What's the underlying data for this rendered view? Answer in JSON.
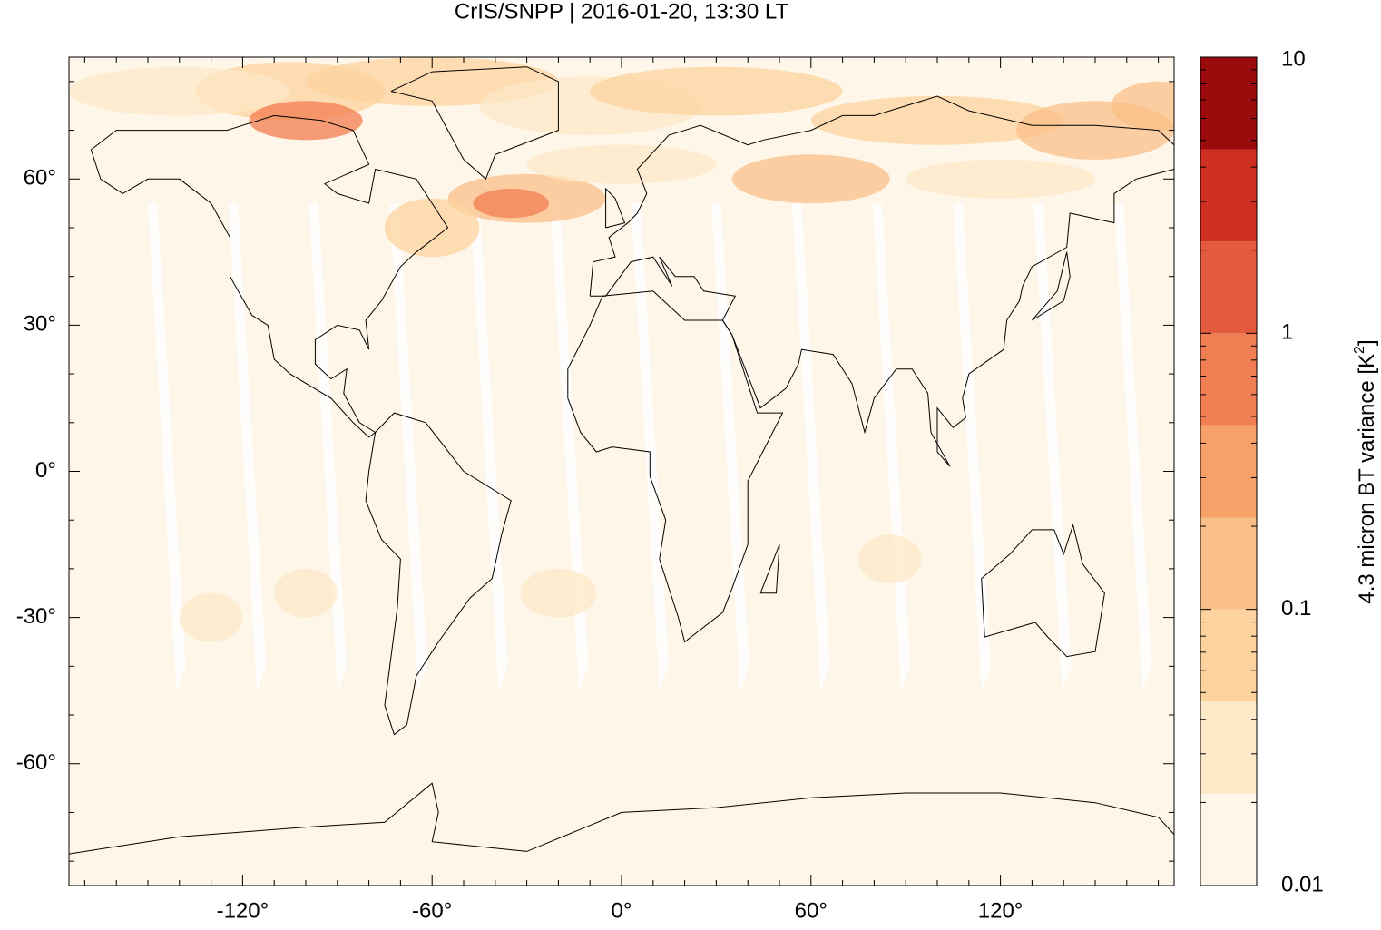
{
  "chart_data": {
    "type": "map",
    "title": "CrIS/SNPP | 2016-01-20, 13:30 LT",
    "colorbar_label": [
      "4.3 micron BT variance [K",
      "2",
      "]"
    ],
    "xlim": [
      -175,
      175
    ],
    "ylim": [
      -85,
      85
    ],
    "xticks": [
      {
        "value": -120,
        "label": "-120°"
      },
      {
        "value": -60,
        "label": "-60°"
      },
      {
        "value": 0,
        "label": "0°"
      },
      {
        "value": 60,
        "label": "60°"
      },
      {
        "value": 120,
        "label": "120°"
      }
    ],
    "yticks": [
      {
        "value": 60,
        "label": "60°"
      },
      {
        "value": 30,
        "label": "30°"
      },
      {
        "value": 0,
        "label": "0°"
      },
      {
        "value": -30,
        "label": "-30°"
      },
      {
        "value": -60,
        "label": "-60°"
      }
    ],
    "xminorticks": [
      -170,
      -160,
      -150,
      -140,
      -130,
      -110,
      -100,
      -90,
      -80,
      -70,
      -50,
      -40,
      -30,
      -20,
      -10,
      10,
      20,
      30,
      40,
      50,
      70,
      80,
      90,
      100,
      110,
      130,
      140,
      150,
      160,
      170
    ],
    "yminorticks": [
      -80,
      -70,
      -50,
      -40,
      -20,
      -10,
      10,
      20,
      40,
      50,
      70,
      80
    ],
    "colorbar": {
      "scale": "log",
      "lim": [
        0.01,
        10
      ],
      "ticks": [
        0.01,
        0.1,
        1,
        10
      ],
      "minorticks": [
        0.02,
        0.03,
        0.04,
        0.05,
        0.06,
        0.07,
        0.08,
        0.09,
        0.2,
        0.3,
        0.4,
        0.5,
        0.6,
        0.7,
        0.8,
        0.9,
        2,
        3,
        4,
        5,
        6,
        7,
        8,
        9
      ],
      "levels": [
        0.01,
        0.0215,
        0.0464,
        0.1,
        0.215,
        0.464,
        1,
        2.15,
        4.64,
        10
      ],
      "colors": [
        "#fef6e8",
        "#fde8c8",
        "#fcd39f",
        "#f9bf88",
        "#f7a169",
        "#f17d52",
        "#e45a3f",
        "#cf2f23",
        "#9b0a0c"
      ]
    }
  }
}
